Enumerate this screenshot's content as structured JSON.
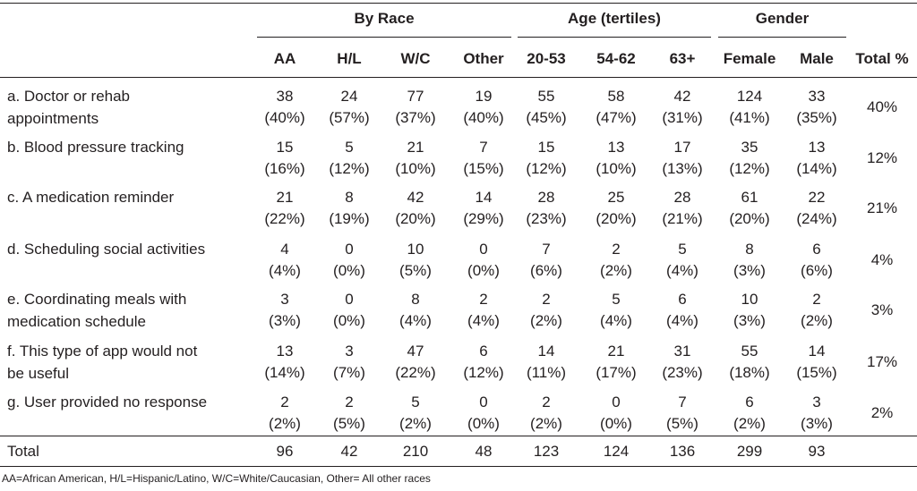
{
  "table": {
    "group_headers": [
      "By Race",
      "Age (tertiles)",
      "Gender"
    ],
    "columns": [
      "AA",
      "H/L",
      "W/C",
      "Other",
      "20-53",
      "54-62",
      "63+",
      "Female",
      "Male",
      "Total %"
    ],
    "rows": [
      {
        "label": [
          "a. Doctor or rehab",
          "appointments"
        ],
        "counts": [
          "38",
          "24",
          "77",
          "19",
          "55",
          "58",
          "42",
          "124",
          "33"
        ],
        "pcts": [
          "(40%)",
          "(57%)",
          "(37%)",
          "(40%)",
          "(45%)",
          "(47%)",
          "(31%)",
          "(41%)",
          "(35%)"
        ],
        "total": "40%"
      },
      {
        "label": [
          "b. Blood pressure tracking",
          ""
        ],
        "counts": [
          "15",
          "5",
          "21",
          "7",
          "15",
          "13",
          "17",
          "35",
          "13"
        ],
        "pcts": [
          "(16%)",
          "(12%)",
          "(10%)",
          "(15%)",
          "(12%)",
          "(10%)",
          "(13%)",
          "(12%)",
          "(14%)"
        ],
        "total": "12%"
      },
      {
        "label": [
          "c. A medication reminder",
          ""
        ],
        "counts": [
          "21",
          "8",
          "42",
          "14",
          "28",
          "25",
          "28",
          "61",
          "22"
        ],
        "pcts": [
          "(22%)",
          "(19%)",
          "(20%)",
          "(29%)",
          "(23%)",
          "(20%)",
          "(21%)",
          "(20%)",
          "(24%)"
        ],
        "total": "21%"
      },
      {
        "label": [
          "d. Scheduling social activities",
          ""
        ],
        "counts": [
          "4",
          "0",
          "10",
          "0",
          "7",
          "2",
          "5",
          "8",
          "6"
        ],
        "pcts": [
          "(4%)",
          "(0%)",
          "(5%)",
          "(0%)",
          "(6%)",
          "(2%)",
          "(4%)",
          "(3%)",
          "(6%)"
        ],
        "total": "4%"
      },
      {
        "label": [
          "e. Coordinating meals with",
          "medication schedule"
        ],
        "counts": [
          "3",
          "0",
          "8",
          "2",
          "2",
          "5",
          "6",
          "10",
          "2"
        ],
        "pcts": [
          "(3%)",
          "(0%)",
          "(4%)",
          "(4%)",
          "(2%)",
          "(4%)",
          "(4%)",
          "(3%)",
          "(2%)"
        ],
        "total": "3%"
      },
      {
        "label": [
          "f. This type of app would not",
          "be useful"
        ],
        "counts": [
          "13",
          "3",
          "47",
          "6",
          "14",
          "21",
          "31",
          "55",
          "14"
        ],
        "pcts": [
          "(14%)",
          "(7%)",
          "(22%)",
          "(12%)",
          "(11%)",
          "(17%)",
          "(23%)",
          "(18%)",
          "(15%)"
        ],
        "total": "17%"
      },
      {
        "label": [
          "g. User provided no response",
          ""
        ],
        "counts": [
          "2",
          "2",
          "5",
          "0",
          "2",
          "0",
          "7",
          "6",
          "3"
        ],
        "pcts": [
          "(2%)",
          "(5%)",
          "(2%)",
          "(0%)",
          "(2%)",
          "(0%)",
          "(5%)",
          "(2%)",
          "(3%)"
        ],
        "total": "2%"
      }
    ],
    "total_row": {
      "label": "Total",
      "values": [
        "96",
        "42",
        "210",
        "48",
        "123",
        "124",
        "136",
        "299",
        "93"
      ]
    }
  },
  "footnote": "AA=African American, H/L=Hispanic/Latino, W/C=White/Caucasian, Other= All other races"
}
